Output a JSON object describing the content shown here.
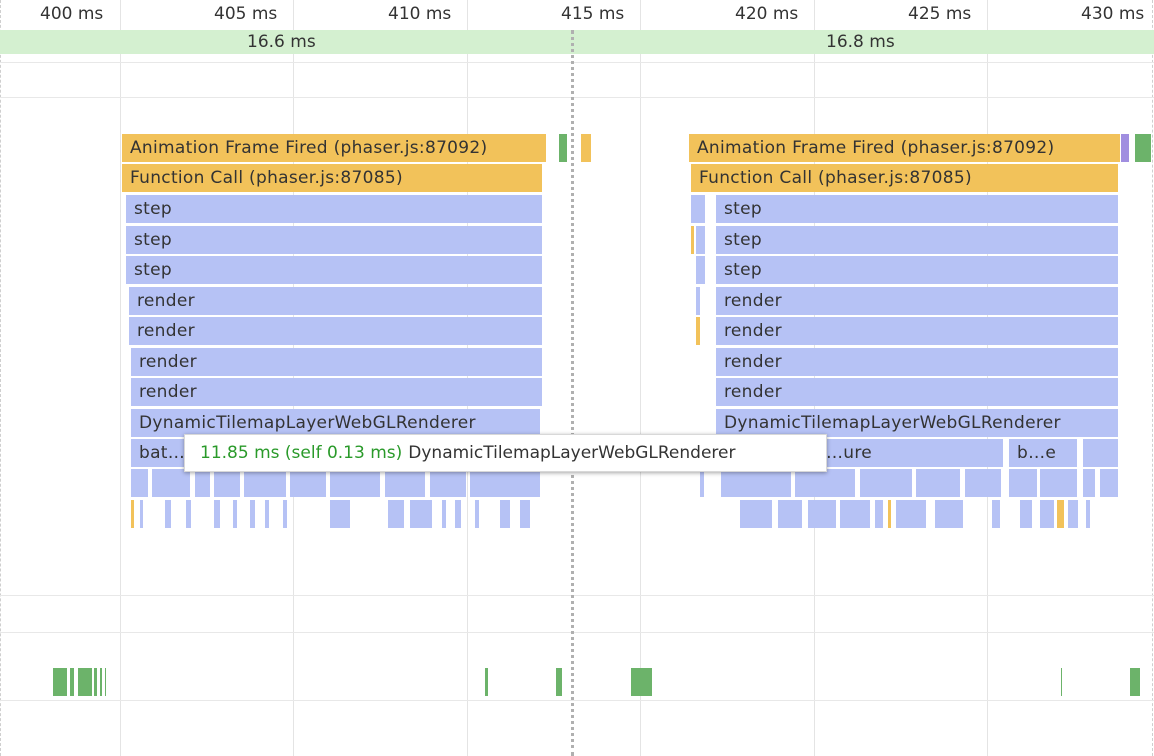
{
  "ruler": {
    "ticks": [
      "400 ms",
      "405 ms",
      "410 ms",
      "415 ms",
      "420 ms",
      "425 ms",
      "430 ms"
    ]
  },
  "frames": [
    "16.6 ms",
    "16.8 ms"
  ],
  "left_stack": {
    "animation_frame": "Animation Frame Fired (phaser.js:87092)",
    "function_call": "Function Call (phaser.js:87085)",
    "step1": "step",
    "step2": "step",
    "step3": "step",
    "render1": "render",
    "render2": "render",
    "render3": "render",
    "render4": "render",
    "dynamic": "DynamicTilemapLayerWebGLRenderer",
    "batch": "bat…"
  },
  "right_stack": {
    "animation_frame": "Animation Frame Fired (phaser.js:87092)",
    "function_call": "Function Call (phaser.js:87085)",
    "step1": "step",
    "step2": "step",
    "step3": "step",
    "render1": "render",
    "render2": "render",
    "render3": "render",
    "render4": "render",
    "dynamic": "DynamicTilemapLayerWebGLRenderer",
    "texture": "…ure",
    "be": "b…e"
  },
  "tooltip": {
    "time": "11.85 ms (self 0.13 ms)",
    "name": "DynamicTilemapLayerWebGLRenderer"
  },
  "colors": {
    "scripting": "#f2c25a",
    "rendering": "#b6c2f5",
    "painting": "#6cb36a",
    "frames": "#d4f0d0"
  }
}
